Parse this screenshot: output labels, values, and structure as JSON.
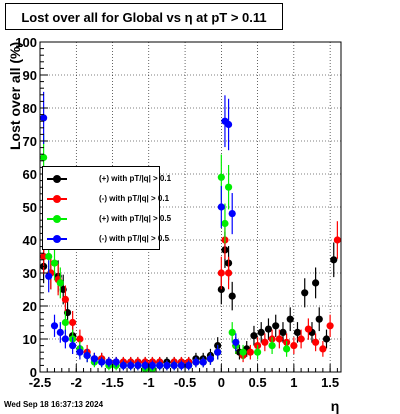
{
  "title": "Lost over all for Global vs    η at pT > 0.11",
  "footer": "Wed Sep 18 16:37:13 2024",
  "chart_data": {
    "type": "scatter",
    "title": "Lost over all for Global vs    η at pT > 0.11",
    "xlabel": "η",
    "ylabel": "Lost over all (%)",
    "xlim": [
      -2.5,
      1.65
    ],
    "ylim": [
      0,
      100
    ],
    "grid": true,
    "legend_position": "middle-left",
    "x_ticks": [
      "-2.5",
      "-2",
      "-1.5",
      "-1",
      "-0.5",
      "0",
      "0.5",
      "1",
      "1.5"
    ],
    "x_tick_values": [
      -2.5,
      -2,
      -1.5,
      -1,
      -0.5,
      0,
      0.5,
      1,
      1.5
    ],
    "y_ticks": [
      "0",
      "10",
      "20",
      "30",
      "40",
      "50",
      "60",
      "70",
      "80",
      "90",
      "100"
    ],
    "y_tick_values": [
      0,
      10,
      20,
      30,
      40,
      50,
      60,
      70,
      80,
      90,
      100
    ],
    "series": [
      {
        "name": "(+) with pT/|q| > 0.1",
        "color": "#000000",
        "x": [
          -2.45,
          -2.35,
          -2.25,
          -2.18,
          -2.12,
          -2.05,
          -1.95,
          -1.85,
          -1.75,
          -1.65,
          -1.55,
          -1.45,
          -1.35,
          -1.25,
          -1.15,
          -1.05,
          -0.95,
          -0.85,
          -0.75,
          -0.65,
          -0.55,
          -0.45,
          -0.35,
          -0.25,
          -0.15,
          -0.05,
          0.0,
          0.05,
          0.1,
          0.15,
          0.2,
          0.25,
          0.35,
          0.45,
          0.55,
          0.65,
          0.75,
          0.85,
          0.95,
          1.05,
          1.15,
          1.25,
          1.3,
          1.35,
          1.45,
          1.55
        ],
        "y": [
          32,
          30,
          29,
          25,
          18,
          11,
          7,
          5,
          4,
          4,
          3,
          3,
          3,
          3,
          3,
          3,
          3,
          3,
          3,
          3,
          3,
          3,
          4,
          4,
          5,
          8,
          25,
          37,
          33,
          23,
          8,
          6,
          7,
          11,
          12,
          13,
          14,
          12,
          16,
          12,
          24,
          12,
          27,
          16,
          10,
          34
        ]
      },
      {
        "name": "(-) with pT/|q| > 0.1",
        "color": "#ff0000",
        "x": [
          -2.45,
          -2.35,
          -2.25,
          -2.15,
          -2.05,
          -1.95,
          -1.85,
          -1.75,
          -1.65,
          -1.55,
          -1.45,
          -1.35,
          -1.25,
          -1.15,
          -1.05,
          -0.95,
          -0.85,
          -0.75,
          -0.65,
          -0.55,
          -0.45,
          -0.35,
          -0.25,
          -0.15,
          -0.05,
          0.0,
          0.05,
          0.1,
          0.2,
          0.3,
          0.4,
          0.5,
          0.6,
          0.7,
          0.8,
          0.9,
          1.0,
          1.1,
          1.2,
          1.3,
          1.4,
          1.5,
          1.6
        ],
        "y": [
          35,
          30,
          28,
          22,
          15,
          10,
          6,
          4,
          4,
          3,
          3,
          3,
          3,
          3,
          3,
          3,
          3,
          2,
          3,
          3,
          3,
          3,
          3,
          4,
          6,
          30,
          40,
          30,
          8,
          5,
          6,
          8,
          9,
          10,
          10,
          9,
          8,
          10,
          13,
          9,
          7,
          14,
          40
        ]
      },
      {
        "name": "(+) with pT/|q| > 0.5",
        "color": "#00ee00",
        "x": [
          -2.45,
          -2.38,
          -2.3,
          -2.22,
          -2.15,
          -2.05,
          -1.95,
          -1.85,
          -1.75,
          -1.65,
          -1.55,
          -1.45,
          -1.35,
          -1.25,
          -1.15,
          -1.05,
          -0.95,
          -0.85,
          -0.75,
          -0.65,
          -0.55,
          -0.45,
          -0.35,
          -0.25,
          -0.15,
          -0.05,
          0.0,
          0.05,
          0.1,
          0.15,
          0.2,
          0.3,
          0.5,
          0.7,
          0.9
        ],
        "y": [
          65,
          35,
          33,
          27,
          15,
          10,
          7,
          5,
          3,
          3,
          2,
          2,
          2,
          2,
          2,
          1,
          1,
          2,
          2,
          2,
          2,
          2,
          3,
          3,
          4,
          6,
          59,
          45,
          56,
          12,
          8,
          6,
          6,
          8,
          7
        ]
      },
      {
        "name": "(-) with pT/|q| > 0.5",
        "color": "#0000ff",
        "x": [
          -2.45,
          -2.38,
          -2.3,
          -2.22,
          -2.15,
          -2.05,
          -1.95,
          -1.85,
          -1.75,
          -1.65,
          -1.55,
          -1.45,
          -1.35,
          -1.25,
          -1.15,
          -1.05,
          -0.95,
          -0.85,
          -0.75,
          -0.65,
          -0.55,
          -0.45,
          -0.35,
          -0.25,
          -0.15,
          -0.05,
          0.0,
          0.05,
          0.1,
          0.15,
          0.2
        ],
        "y": [
          77,
          29,
          14,
          12,
          10,
          8,
          6,
          5,
          4,
          3,
          3,
          3,
          2,
          2,
          2,
          2,
          2,
          2,
          2,
          2,
          2,
          2,
          3,
          3,
          4,
          6,
          50,
          76,
          75,
          48,
          9
        ]
      }
    ]
  }
}
